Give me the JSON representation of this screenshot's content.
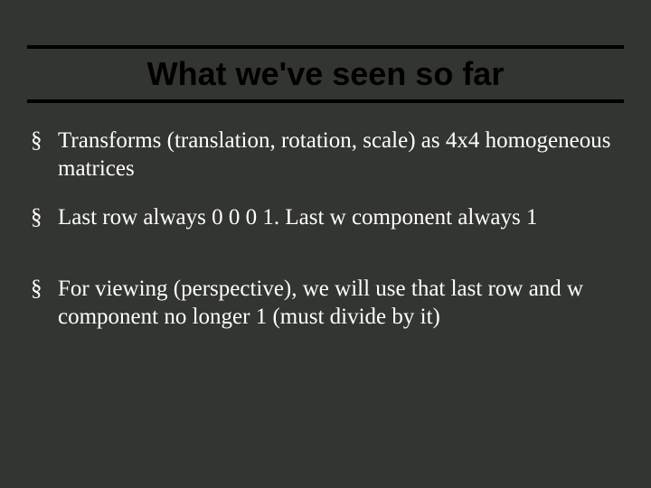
{
  "slide": {
    "background_color": "#333530",
    "rule_color": "#000000",
    "title": {
      "text": "What we've seen so far",
      "color": "#000000",
      "font_family": "Arial",
      "font_weight": 700,
      "font_size_pt": 27
    },
    "body": {
      "text_color": "#ffffff",
      "font_family": "Times New Roman",
      "font_size_pt": 19,
      "bullet_glyph": "§",
      "items": [
        {
          "text": "Transforms (translation, rotation, scale) as 4x4 homogeneous matrices",
          "gap_before": false
        },
        {
          "text": "Last row always 0 0 0 1.  Last w component always 1",
          "gap_before": false
        },
        {
          "text": "For viewing (perspective), we will use that last row and w component no longer 1 (must divide by it)",
          "gap_before": true
        }
      ]
    }
  }
}
